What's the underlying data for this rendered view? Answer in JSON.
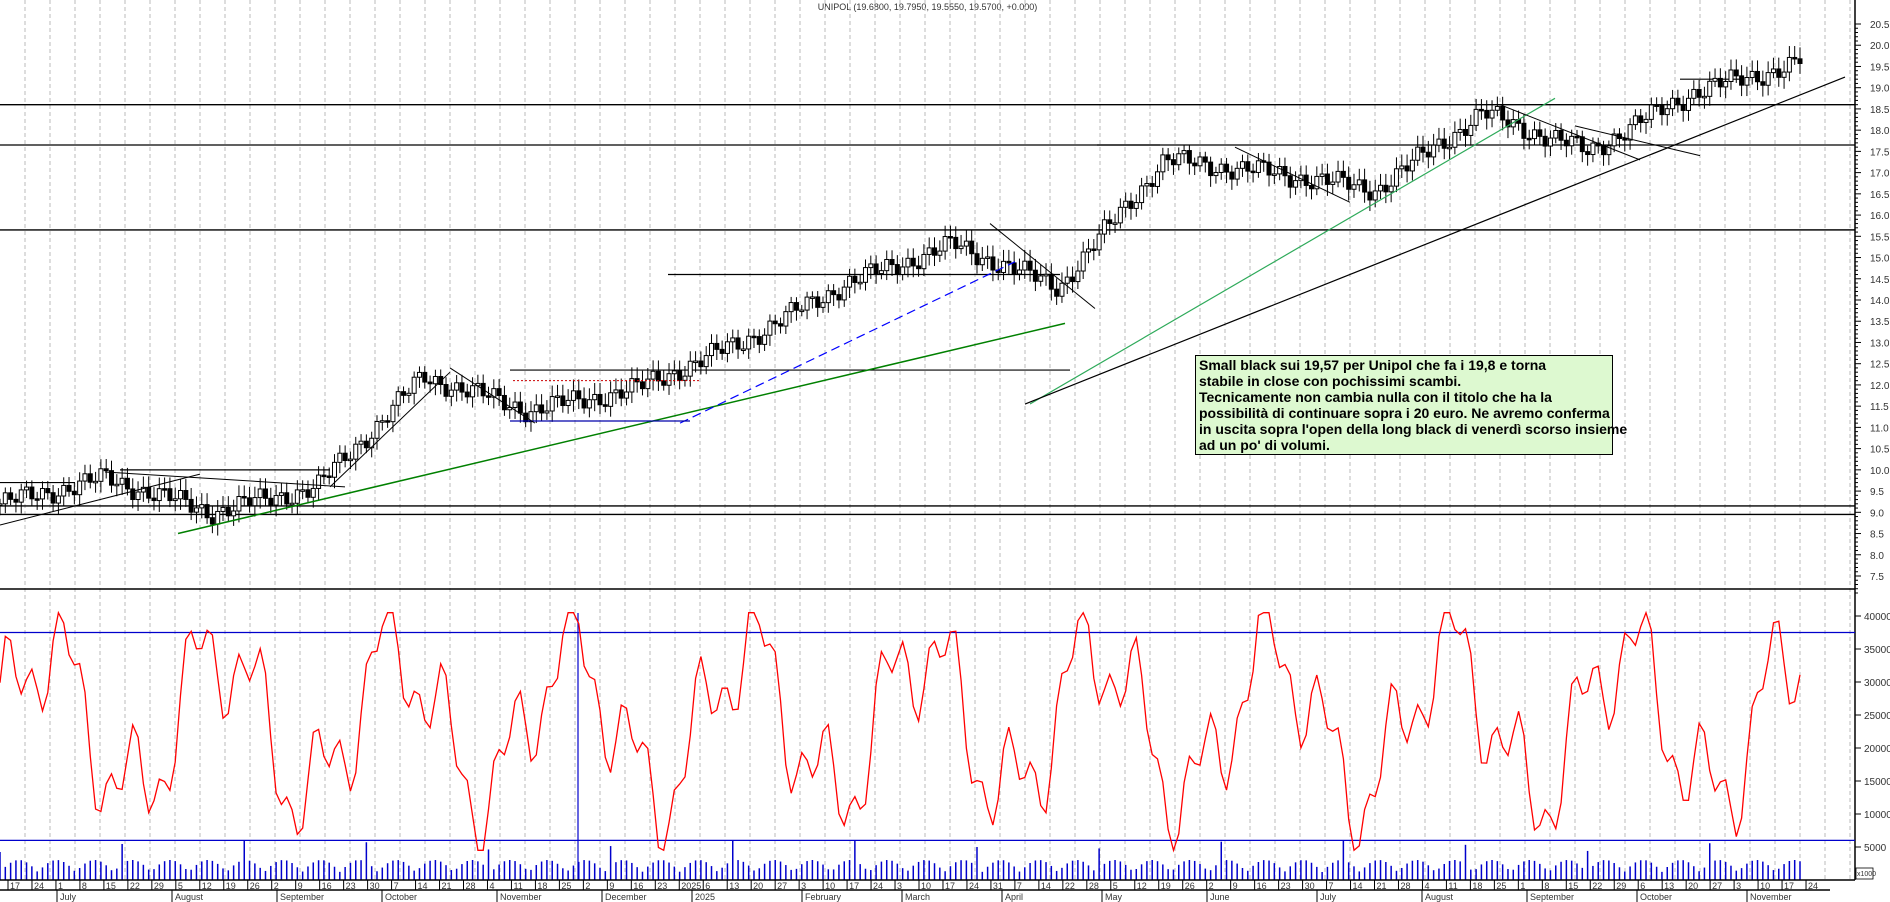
{
  "header": {
    "title": "UNIPOL (19.6800, 19.7950, 19.5550, 19.5700, +0.000)"
  },
  "annotation": {
    "lines": [
      "Small black sui 19,57 per Unipol che fa i 19,8 e torna",
      "stabile in close con pochissimi scambi.",
      "Tecnicamente non cambia nulla con il titolo che ha la",
      "possibilità di continuare sopra i 20 euro. Ne avremo conferma",
      "in uscita sopra l'open della long black di venerdì scorso insieme",
      "ad un po' di volumi."
    ],
    "background": "#ddf9d0"
  },
  "colors": {
    "candles": "#000000",
    "indicator_line": "#ff0000",
    "indicator_levels": "#0000cc",
    "volume_bars": "#0000cc",
    "green_trendline": "#008000",
    "light_green_trendline": "#2eaa5a",
    "blue_dashed_trendline": "#0000ff",
    "red_dotted_line": "#cc0000",
    "grid": "#bbbbbb"
  },
  "chart_data": {
    "type": "candlestick",
    "title": "UNIPOL (19.6800, 19.7950, 19.5550, 19.5700, +0.000)",
    "last_bar": {
      "open": 19.68,
      "high": 19.795,
      "low": 19.555,
      "close": 19.57,
      "change": 0.0
    },
    "price_axis": {
      "ticks": [
        "20.5",
        "20.0",
        "19.5",
        "19.0",
        "18.5",
        "18.0",
        "17.5",
        "17.0",
        "16.5",
        "16.0",
        "15.5",
        "15.0",
        "14.5",
        "14.0",
        "13.5",
        "13.0",
        "12.5",
        "12.0",
        "11.5",
        "11.0",
        "10.5",
        "10.0",
        "9.5",
        "9.0",
        "8.5",
        "8.0",
        "7.5"
      ],
      "range": [
        7.5,
        20.8
      ]
    },
    "indicator_axis": {
      "ticks": [
        "40000",
        "35000",
        "30000",
        "25000",
        "20000",
        "15000",
        "10000",
        "5000"
      ],
      "upper_level": 37500,
      "lower_level": 6000,
      "volume_unit_label": "x1000"
    },
    "horizontal_levels": [
      18.6,
      17.65,
      15.65,
      9.15,
      8.95
    ],
    "date_axis": {
      "day_ticks": [
        "17",
        "24",
        "1",
        "8",
        "15",
        "22",
        "29",
        "5",
        "12",
        "19",
        "26",
        "2",
        "9",
        "16",
        "23",
        "30",
        "7",
        "14",
        "21",
        "28",
        "4",
        "11",
        "18",
        "25",
        "2",
        "9",
        "16",
        "23",
        "2025",
        "6",
        "13",
        "20",
        "27",
        "3",
        "10",
        "17",
        "24",
        "3",
        "10",
        "17",
        "24",
        "31",
        "7",
        "14",
        "22",
        "28",
        "5",
        "12",
        "19",
        "26",
        "2",
        "9",
        "16",
        "23",
        "30",
        "7",
        "14",
        "21",
        "28",
        "4",
        "11",
        "18",
        "25",
        "1",
        "8",
        "15",
        "22",
        "29",
        "6",
        "13",
        "20",
        "27",
        "3",
        "10",
        "17",
        "24"
      ],
      "months": [
        "July",
        "August",
        "September",
        "October",
        "November",
        "December",
        "2025",
        "February",
        "March",
        "April",
        "May",
        "June",
        "July",
        "August",
        "September",
        "October",
        "November"
      ]
    },
    "price_path_approx": [
      {
        "label": "Jun 2024",
        "close": 9.2
      },
      {
        "label": "Jul 2024",
        "close": 9.8
      },
      {
        "label": "Aug 2024",
        "close": 9.0
      },
      {
        "label": "Sep 2024",
        "close": 9.6
      },
      {
        "label": "Oct 2024",
        "close": 12.2
      },
      {
        "label": "Nov 2024",
        "close": 11.4
      },
      {
        "label": "Dec 2024",
        "close": 11.9
      },
      {
        "label": "Jan 2025",
        "close": 13.0
      },
      {
        "label": "Feb 2025",
        "close": 14.4
      },
      {
        "label": "Mar 2025",
        "close": 15.3
      },
      {
        "label": "Apr 2025",
        "close": 14.3
      },
      {
        "label": "May 2025",
        "close": 17.3
      },
      {
        "label": "Jun 2025",
        "close": 17.0
      },
      {
        "label": "Jul 2025",
        "close": 16.6
      },
      {
        "label": "Aug 2025",
        "close": 18.4
      },
      {
        "label": "Sep 2025",
        "close": 17.5
      },
      {
        "label": "Oct 2025",
        "close": 18.9
      },
      {
        "label": "Nov 2025",
        "close": 19.57
      }
    ]
  }
}
